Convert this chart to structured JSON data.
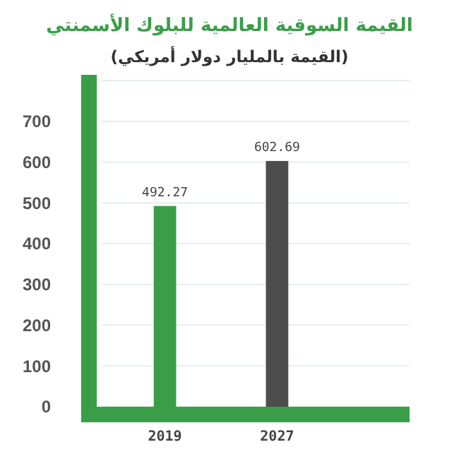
{
  "chart_data": {
    "type": "bar",
    "title": "القيمة السوقية العالمية للبلوك الأسمنتي",
    "subtitle": "(القيمة بالمليار دولار أمريكي)",
    "categories": [
      "2019",
      "2027"
    ],
    "values": [
      492.27,
      602.69
    ],
    "colors": [
      "#3a9e48",
      "#4d4d4d"
    ],
    "ylim": [
      0,
      800
    ],
    "yticks": [
      0,
      100,
      200,
      300,
      400,
      500,
      600,
      700,
      {
        "value": 800,
        "label": null
      }
    ],
    "grid": "y",
    "data_labels": true
  }
}
